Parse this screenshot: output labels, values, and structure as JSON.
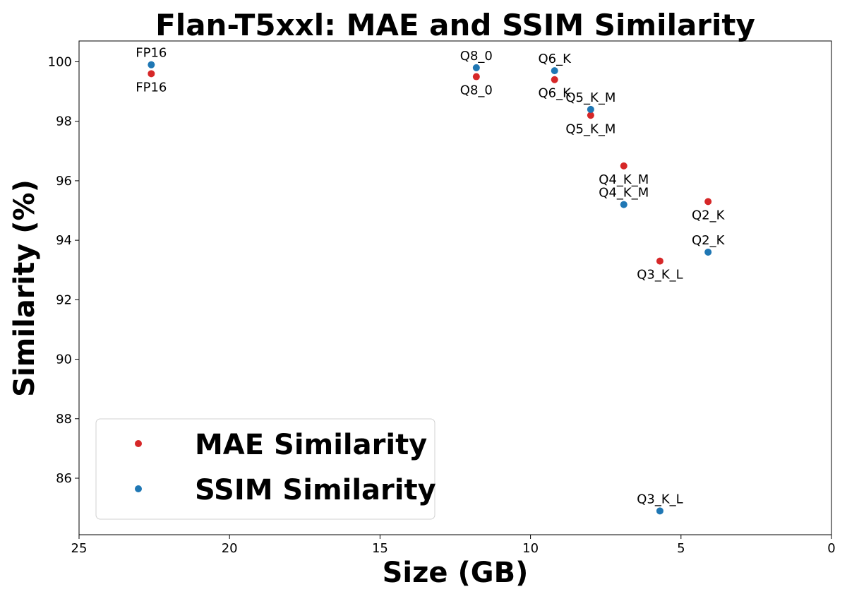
{
  "chart_data": {
    "type": "scatter",
    "title": "Flan-T5xxl: MAE and SSIM Similarity",
    "xlabel": "Size (GB)",
    "ylabel": "Similarity (%)",
    "xlim": [
      25,
      0
    ],
    "ylim": [
      84.1,
      100.7
    ],
    "x_inverted": true,
    "xticks": [
      25,
      20,
      15,
      10,
      5,
      0
    ],
    "yticks": [
      86,
      88,
      90,
      92,
      94,
      96,
      98,
      100
    ],
    "grid": false,
    "legend_position": "lower-left",
    "series": [
      {
        "name": "MAE Similarity",
        "color": "#d62728",
        "label_position": "below",
        "points": [
          {
            "label": "FP16",
            "x": 22.6,
            "y": 99.6
          },
          {
            "label": "Q8_0",
            "x": 11.8,
            "y": 99.5
          },
          {
            "label": "Q6_K",
            "x": 9.2,
            "y": 99.4
          },
          {
            "label": "Q5_K_M",
            "x": 8.0,
            "y": 98.2
          },
          {
            "label": "Q4_K_M",
            "x": 6.9,
            "y": 96.5
          },
          {
            "label": "Q2_K",
            "x": 4.1,
            "y": 95.3
          },
          {
            "label": "Q3_K_L",
            "x": 5.7,
            "y": 93.3
          }
        ]
      },
      {
        "name": "SSIM Similarity",
        "color": "#1f77b4",
        "label_position": "above",
        "points": [
          {
            "label": "FP16",
            "x": 22.6,
            "y": 99.9
          },
          {
            "label": "Q8_0",
            "x": 11.8,
            "y": 99.8
          },
          {
            "label": "Q6_K",
            "x": 9.2,
            "y": 99.7
          },
          {
            "label": "Q5_K_M",
            "x": 8.0,
            "y": 98.4
          },
          {
            "label": "Q4_K_M",
            "x": 6.9,
            "y": 95.2
          },
          {
            "label": "Q2_K",
            "x": 4.1,
            "y": 93.6
          },
          {
            "label": "Q3_K_L",
            "x": 5.7,
            "y": 84.9
          }
        ]
      }
    ]
  }
}
